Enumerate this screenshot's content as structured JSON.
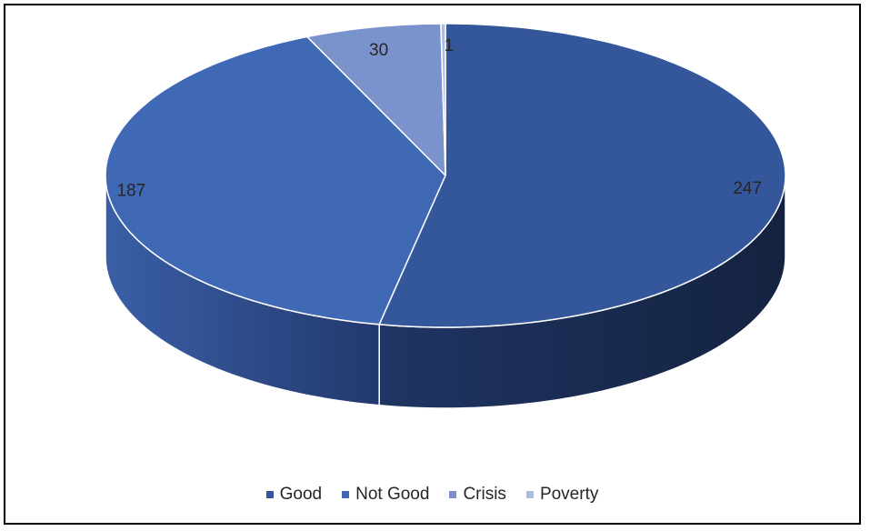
{
  "chart_data": {
    "type": "pie",
    "categories": [
      "Good",
      "Not Good",
      "Crisis",
      "Poverty"
    ],
    "values": [
      247,
      187,
      30,
      1
    ],
    "labels": [
      "247",
      "187",
      "30",
      "1"
    ],
    "colors": [
      "#34569A",
      "#3F68B5",
      "#7B93CD",
      "#ADBBE0"
    ],
    "title": "",
    "legend_position": "bottom",
    "style": "3d"
  }
}
